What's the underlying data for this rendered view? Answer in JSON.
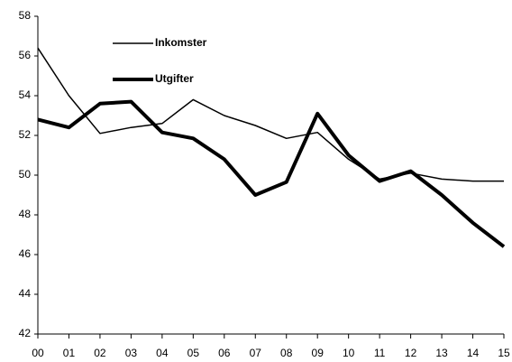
{
  "chart_data": {
    "type": "line",
    "categories": [
      "00",
      "01",
      "02",
      "03",
      "04",
      "05",
      "06",
      "07",
      "08",
      "09",
      "10",
      "11",
      "12",
      "13",
      "14",
      "15"
    ],
    "series": [
      {
        "name": "Inkomster",
        "color": "#000000",
        "values": [
          56.4,
          54.0,
          52.1,
          52.4,
          52.6,
          53.8,
          53.0,
          52.5,
          51.85,
          52.15,
          50.8,
          49.8,
          50.1,
          49.8,
          49.7,
          49.7
        ]
      },
      {
        "name": "Utgifter",
        "color": "#000000",
        "values": [
          52.8,
          52.4,
          53.6,
          53.7,
          52.15,
          51.85,
          50.8,
          49.0,
          49.65,
          53.1,
          51.0,
          49.7,
          50.2,
          49.0,
          47.6,
          46.4
        ]
      }
    ],
    "ylim": [
      42,
      58
    ],
    "yticks": [
      42,
      44,
      46,
      48,
      50,
      52,
      54,
      56,
      58
    ]
  }
}
